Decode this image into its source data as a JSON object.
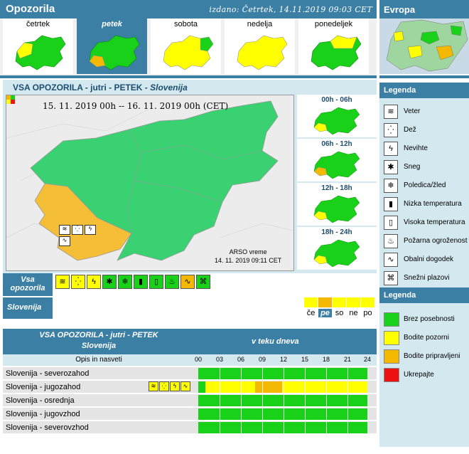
{
  "header": {
    "title": "Opozorila",
    "issued": "izdano: Četrtek, 14.11.2019 09:03 CET",
    "europe": "Evropa"
  },
  "days": [
    {
      "label": "četrtek",
      "selected": false
    },
    {
      "label": "petek",
      "selected": true
    },
    {
      "label": "sobota",
      "selected": false
    },
    {
      "label": "nedelja",
      "selected": false
    },
    {
      "label": "ponedeljek",
      "selected": false
    }
  ],
  "panel": {
    "title_prefix": "VSA OPOZORILA - jutri - PETEK -",
    "title_region": "Slovenija",
    "dates": "15. 11. 2019  00h  --  16. 11. 2019  00h     (CET)",
    "arso_line1": "ARSO vreme",
    "arso_line2": "14. 11. 2019  09:11 CET"
  },
  "slots": [
    "00h - 06h",
    "06h - 12h",
    "12h - 18h",
    "18h - 24h"
  ],
  "vsa_label": "Vsa opozorila",
  "slovenija_label": "Slovenija",
  "day_abbr": [
    "če",
    "pe",
    "so",
    "ne",
    "po"
  ],
  "table": {
    "head1": "VSA OPOZORILA - jutri - PETEK",
    "head2": "Slovenija",
    "head_right": "v teku dneva",
    "opis": "Opis in nasveti",
    "hours": [
      "00",
      "03",
      "06",
      "09",
      "12",
      "15",
      "18",
      "21",
      "24"
    ],
    "rows": [
      {
        "name": "Slovenija - severozahod",
        "warn": false
      },
      {
        "name": "Slovenija - jugozahod",
        "warn": true
      },
      {
        "name": "Slovenija - osrednja",
        "warn": false
      },
      {
        "name": "Slovenija - jugovzhod",
        "warn": false
      },
      {
        "name": "Slovenija - severovzhod",
        "warn": false
      }
    ]
  },
  "legend1": {
    "title": "Legenda",
    "items": [
      {
        "label": "Veter",
        "icon": "wind-icon"
      },
      {
        "label": "Dež",
        "icon": "rain-icon"
      },
      {
        "label": "Nevihte",
        "icon": "thunderstorm-icon"
      },
      {
        "label": "Sneg",
        "icon": "snow-icon"
      },
      {
        "label": "Poledica/žled",
        "icon": "ice-icon"
      },
      {
        "label": "Nizka temperatura",
        "icon": "low-temperature-icon"
      },
      {
        "label": "Visoka temperatura",
        "icon": "high-temperature-icon"
      },
      {
        "label": "Požarna ogroženost",
        "icon": "fire-danger-icon"
      },
      {
        "label": "Obalni dogodek",
        "icon": "coastal-event-icon"
      },
      {
        "label": "Snežni plazovi",
        "icon": "avalanche-icon"
      }
    ]
  },
  "legend2": {
    "title": "Legenda",
    "items": [
      {
        "label": "Brez posebnosti",
        "color": "#19d119"
      },
      {
        "label": "Bodite pozorni",
        "color": "#ffff00"
      },
      {
        "label": "Bodite pripravljeni",
        "color": "#f5b800"
      },
      {
        "label": "Ukrepajte",
        "color": "#ee1111"
      }
    ]
  },
  "colors": {
    "green": "#19d119",
    "yellow": "#ffff00",
    "orange": "#f5b800",
    "red": "#ee1111",
    "brand": "#3b7fa5"
  }
}
